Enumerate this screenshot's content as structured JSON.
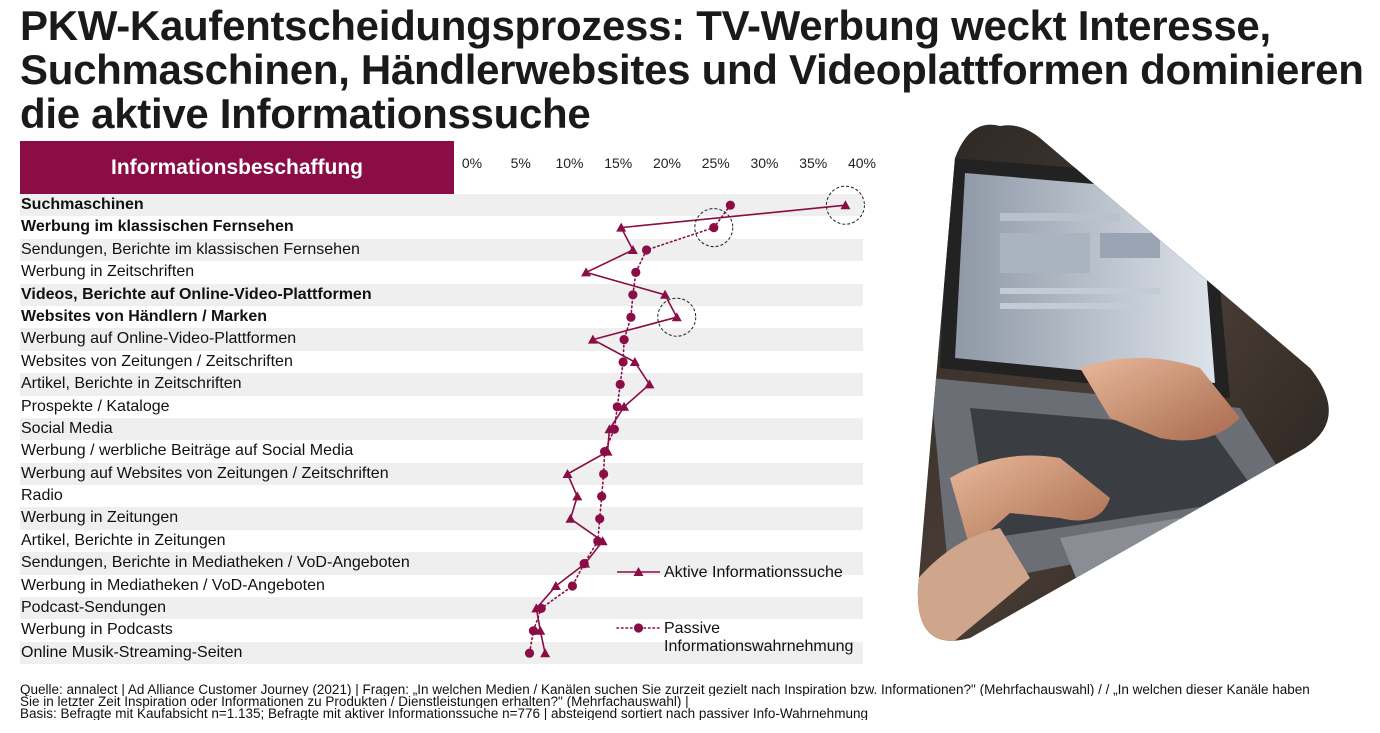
{
  "title": "PKW-Kaufentscheidungsprozess: TV-Werbung weckt Interesse, Suchmaschinen, Händlerwebsites und Videoplattformen dominieren die aktive Informationssuche",
  "header_label": "Informationsbeschaffung",
  "colors": {
    "accent": "#8a0d45",
    "row_shade": "#efefef"
  },
  "chart_data": {
    "type": "line",
    "orientation": "horizontal",
    "x_ticks": [
      "0%",
      "5%",
      "10%",
      "15%",
      "20%",
      "25%",
      "30%",
      "35%",
      "40%"
    ],
    "xlim": [
      0,
      40
    ],
    "categories": [
      "Suchmaschinen",
      "Werbung im klassischen Fernsehen",
      "Sendungen, Berichte im klassischen Fernsehen",
      "Werbung in Zeitschriften",
      "Videos, Berichte auf Online-Video-Plattformen",
      "Websites von Händlern / Marken",
      "Werbung auf Online-Video-Plattformen",
      "Websites von Zeitungen / Zeitschriften",
      "Artikel, Berichte in Zeitschriften",
      "Prospekte / Kataloge",
      "Social Media",
      "Werbung / werbliche Beiträge auf Social Media",
      "Werbung auf Websites von Zeitungen / Zeitschriften",
      "Radio",
      "Werbung in Zeitungen",
      "Artikel, Berichte in Zeitungen",
      "Sendungen, Berichte in Mediatheken / VoD-Angeboten",
      "Werbung in Mediatheken / VoD-Angeboten",
      "Podcast-Sendungen",
      "Werbung in Podcasts",
      "Online Musik-Streaming-Seiten"
    ],
    "bold_categories": [
      0,
      1,
      4,
      5
    ],
    "highlighted": [
      {
        "series": 0,
        "index": 0
      },
      {
        "series": 1,
        "index": 1
      },
      {
        "series": 0,
        "index": 5
      }
    ],
    "series": [
      {
        "name": "Aktive Informationssuche",
        "marker": "triangle",
        "line": "solid",
        "values": [
          38.3,
          15.3,
          16.5,
          11.7,
          19.8,
          21.0,
          12.4,
          16.7,
          18.2,
          15.6,
          14.1,
          13.9,
          9.8,
          10.8,
          10.1,
          13.4,
          11.6,
          8.6,
          6.6,
          7.0,
          7.5
        ]
      },
      {
        "name": "Passive Informationswahrnehmung",
        "marker": "circle",
        "line": "dotted",
        "values": [
          26.5,
          24.8,
          17.9,
          16.8,
          16.5,
          16.3,
          15.6,
          15.5,
          15.2,
          14.9,
          14.6,
          13.6,
          13.5,
          13.3,
          13.1,
          12.9,
          11.5,
          10.3,
          7.1,
          6.3,
          5.9
        ]
      }
    ]
  },
  "footer": {
    "line1": "Quelle: annalect | Ad Alliance Customer Journey (2021) | Fragen: „In welchen Medien / Kanälen suchen Sie zurzeit gezielt nach Inspiration bzw. Informationen?\" (Mehrfachauswahl) / / „In welchen dieser Kanäle haben",
    "line2": "Sie in letzter Zeit Inspiration oder Informationen zu Produkten / Dienstleistungen erhalten?\" (Mehrfachauswahl) |",
    "line3": "Basis: Befragte mit Kaufabsicht n=1.135; Befragte mit aktiver Informationssuche n=776 | absteigend sortiert nach passiver Info-Wahrnehmung"
  }
}
